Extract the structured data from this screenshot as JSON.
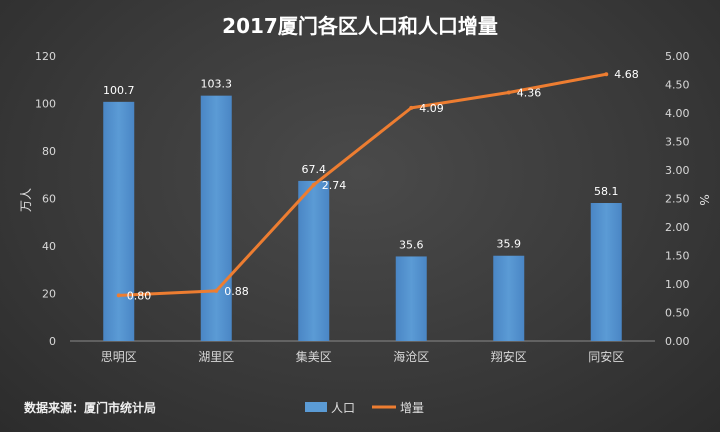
{
  "chart_data": {
    "type": "bar",
    "title": "2017厦门各区人口和人口增量",
    "categories": [
      "思明区",
      "湖里区",
      "集美区",
      "海沧区",
      "翔安区",
      "同安区"
    ],
    "series": [
      {
        "name": "人口",
        "type": "bar",
        "axis": "left",
        "color": "#5b9bd5",
        "values": [
          100.7,
          103.3,
          67.4,
          35.6,
          35.9,
          58.1
        ]
      },
      {
        "name": "增量",
        "type": "line",
        "axis": "right",
        "color": "#ed7d31",
        "values": [
          0.8,
          0.88,
          2.74,
          4.09,
          4.36,
          4.68
        ]
      }
    ],
    "bar_labels": [
      "100.7",
      "103.3",
      "67.4",
      "35.6",
      "35.9",
      "58.1"
    ],
    "line_labels": [
      "0.80",
      "0.88",
      "2.74",
      "4.09",
      "4.36",
      "4.68"
    ],
    "ylabel": "万人",
    "y2label": "%",
    "ylim": [
      0,
      120
    ],
    "y2lim": [
      0,
      5
    ],
    "yticks": [
      "0",
      "20",
      "40",
      "60",
      "80",
      "100",
      "120"
    ],
    "y2ticks": [
      "0.00",
      "0.50",
      "1.00",
      "1.50",
      "2.00",
      "2.50",
      "3.00",
      "3.50",
      "4.00",
      "4.50",
      "5.00"
    ],
    "legend_position": "bottom",
    "grid": false
  },
  "footer": {
    "source": "数据来源：厦门市统计局"
  }
}
